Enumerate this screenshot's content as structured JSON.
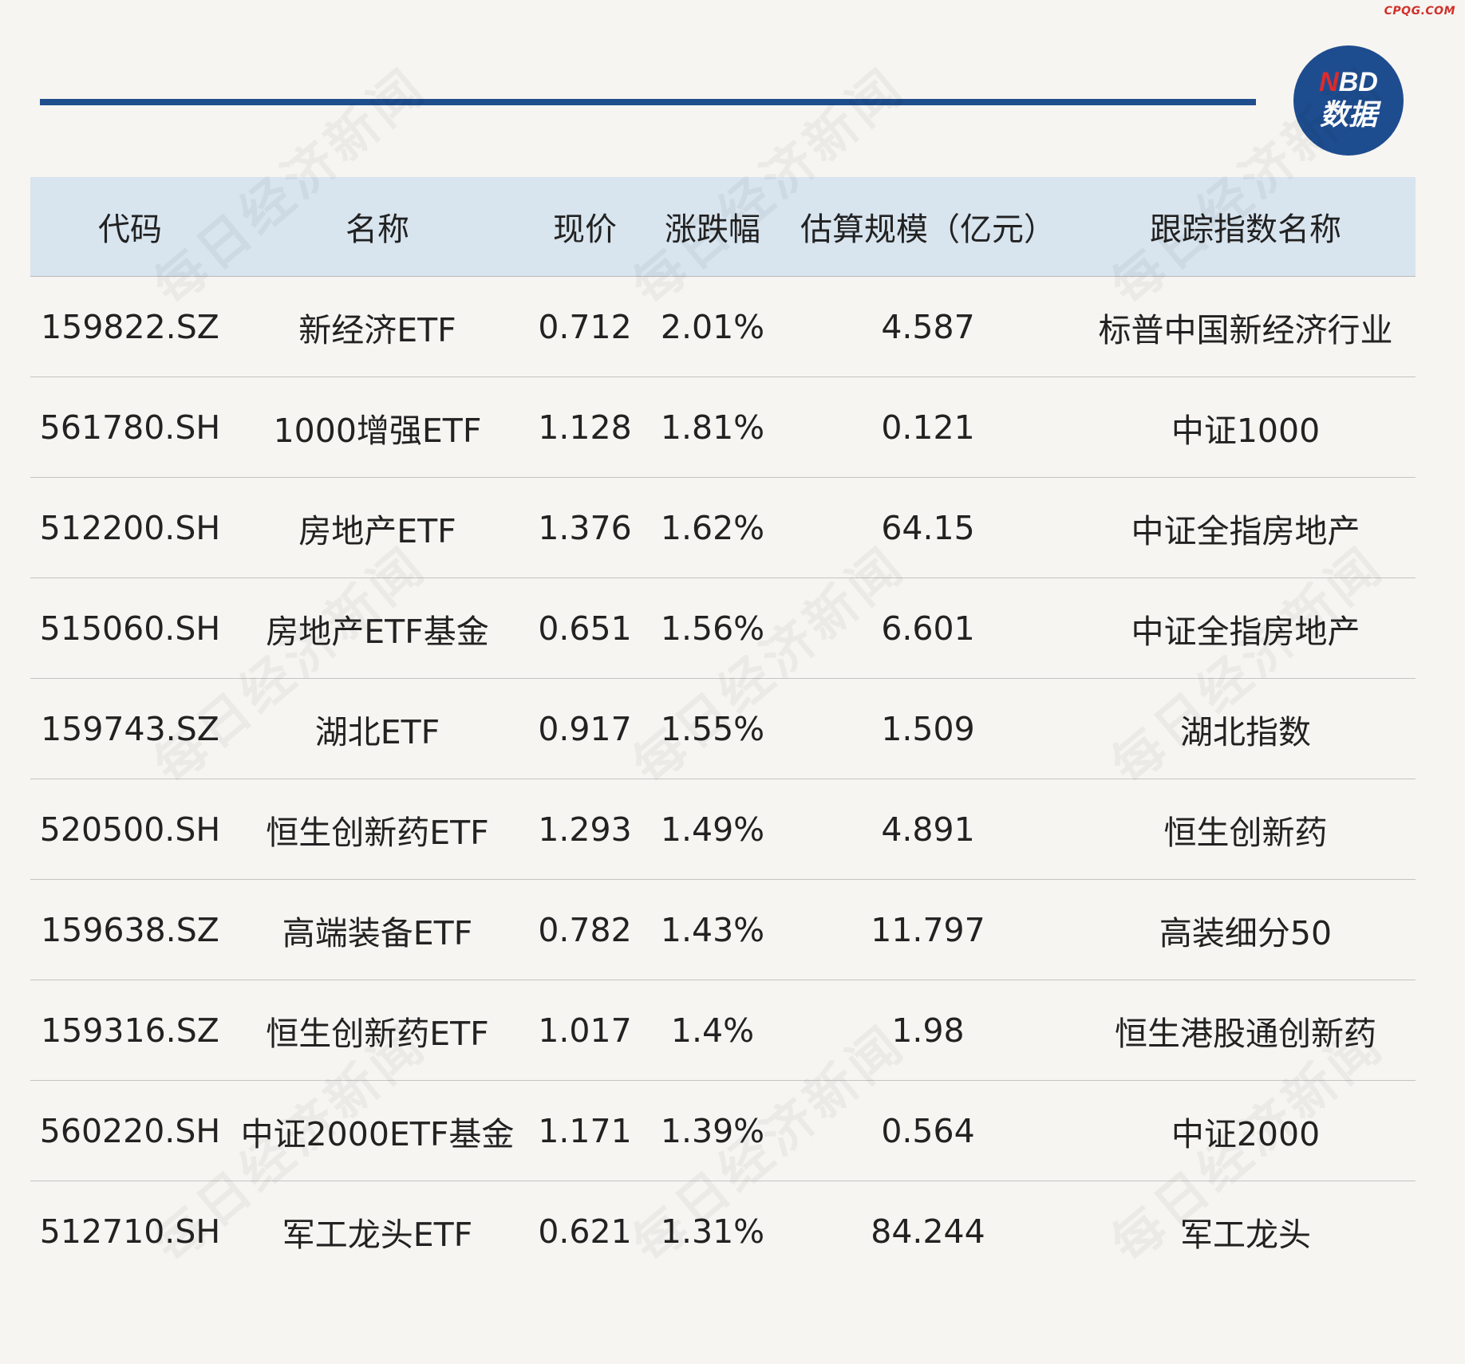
{
  "corner_mark": "CPQG.COM",
  "logo": {
    "line1": "NBD",
    "line2": "数据",
    "circle_color": "#1e4d8f",
    "accent_color": "#e02b2b"
  },
  "watermark_text": "每日经济新闻",
  "table": {
    "headers": [
      "代码",
      "名称",
      "现价",
      "涨跌幅",
      "估算规模（亿元）",
      "跟踪指数名称"
    ],
    "rows": [
      {
        "code": "159822.SZ",
        "name": "新经济ETF",
        "price": "0.712",
        "change": "2.01%",
        "scale": "4.587",
        "index": "标普中国新经济行业"
      },
      {
        "code": "561780.SH",
        "name": "1000增强ETF",
        "price": "1.128",
        "change": "1.81%",
        "scale": "0.121",
        "index": "中证1000"
      },
      {
        "code": "512200.SH",
        "name": "房地产ETF",
        "price": "1.376",
        "change": "1.62%",
        "scale": "64.15",
        "index": "中证全指房地产"
      },
      {
        "code": "515060.SH",
        "name": "房地产ETF基金",
        "price": "0.651",
        "change": "1.56%",
        "scale": "6.601",
        "index": "中证全指房地产"
      },
      {
        "code": "159743.SZ",
        "name": "湖北ETF",
        "price": "0.917",
        "change": "1.55%",
        "scale": "1.509",
        "index": "湖北指数"
      },
      {
        "code": "520500.SH",
        "name": "恒生创新药ETF",
        "price": "1.293",
        "change": "1.49%",
        "scale": "4.891",
        "index": "恒生创新药"
      },
      {
        "code": "159638.SZ",
        "name": "高端装备ETF",
        "price": "0.782",
        "change": "1.43%",
        "scale": "11.797",
        "index": "高装细分50"
      },
      {
        "code": "159316.SZ",
        "name": "恒生创新药ETF",
        "price": "1.017",
        "change": "1.4%",
        "scale": "1.98",
        "index": "恒生港股通创新药"
      },
      {
        "code": "560220.SH",
        "name": "中证2000ETF基金",
        "price": "1.171",
        "change": "1.39%",
        "scale": "0.564",
        "index": "中证2000"
      },
      {
        "code": "512710.SH",
        "name": "军工龙头ETF",
        "price": "0.621",
        "change": "1.31%",
        "scale": "84.244",
        "index": "军工龙头"
      }
    ]
  }
}
